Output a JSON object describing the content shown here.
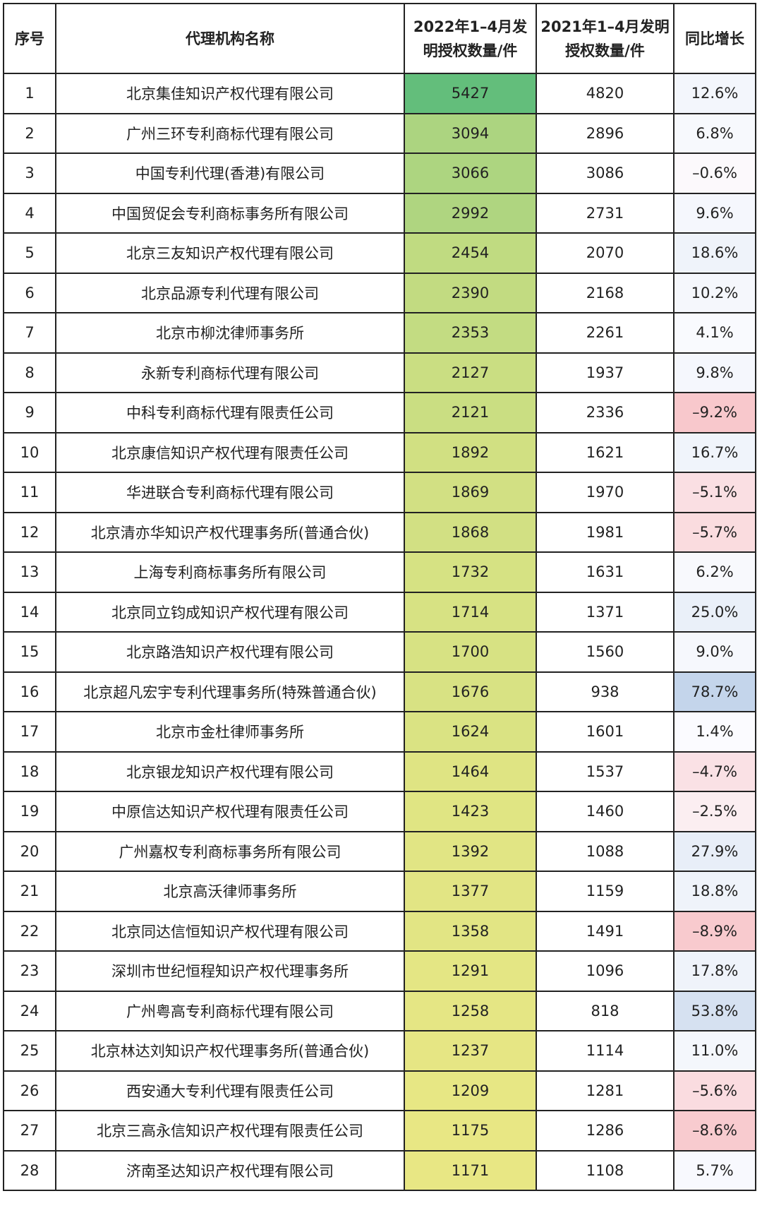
{
  "table": {
    "header": [
      "序号",
      "代理机构名称",
      "2022年1–4月发明授权数量/件",
      "2021年1–4月发明授权数量/件",
      "同比增长"
    ],
    "rows": [
      [
        "1",
        "北京集佳知识产权代理有限公司",
        "5427",
        "4820",
        "12.6%"
      ],
      [
        "2",
        "广州三环专利商标代理有限公司",
        "3094",
        "2896",
        "6.8%"
      ],
      [
        "3",
        "中国专利代理(香港)有限公司",
        "3066",
        "3086",
        "–0.6%"
      ],
      [
        "4",
        "中国贸促会专利商标事务所有限公司",
        "2992",
        "2731",
        "9.6%"
      ],
      [
        "5",
        "北京三友知识产权代理有限公司",
        "2454",
        "2070",
        "18.6%"
      ],
      [
        "6",
        "北京品源专利代理有限公司",
        "2390",
        "2168",
        "10.2%"
      ],
      [
        "7",
        "北京市柳沈律师事务所",
        "2353",
        "2261",
        "4.1%"
      ],
      [
        "8",
        "永新专利商标代理有限公司",
        "2127",
        "1937",
        "9.8%"
      ],
      [
        "9",
        "中科专利商标代理有限责任公司",
        "2121",
        "2336",
        "–9.2%"
      ],
      [
        "10",
        "北京康信知识产权代理有限责任公司",
        "1892",
        "1621",
        "16.7%"
      ],
      [
        "11",
        "华进联合专利商标代理有限公司",
        "1869",
        "1970",
        "–5.1%"
      ],
      [
        "12",
        "北京清亦华知识产权代理事务所(普通合伙)",
        "1868",
        "1981",
        "–5.7%"
      ],
      [
        "13",
        "上海专利商标事务所有限公司",
        "1732",
        "1631",
        "6.2%"
      ],
      [
        "14",
        "北京同立钧成知识产权代理有限公司",
        "1714",
        "1371",
        "25.0%"
      ],
      [
        "15",
        "北京路浩知识产权代理有限公司",
        "1700",
        "1560",
        "9.0%"
      ],
      [
        "16",
        "北京超凡宏宇专利代理事务所(特殊普通合伙)",
        "1676",
        "938",
        "78.7%"
      ],
      [
        "17",
        "北京市金杜律师事务所",
        "1624",
        "1601",
        "1.4%"
      ],
      [
        "18",
        "北京银龙知识产权代理有限公司",
        "1464",
        "1537",
        "–4.7%"
      ],
      [
        "19",
        "中原信达知识产权代理有限责任公司",
        "1423",
        "1460",
        "–2.5%"
      ],
      [
        "20",
        "广州嘉权专利商标事务所有限公司",
        "1392",
        "1088",
        "27.9%"
      ],
      [
        "21",
        "北京高沃律师事务所",
        "1377",
        "1159",
        "18.8%"
      ],
      [
        "22",
        "北京同达信恒知识产权代理有限公司",
        "1358",
        "1491",
        "–8.9%"
      ],
      [
        "23",
        "深圳市世纪恒程知识产权代理事务所",
        "1291",
        "1096",
        "17.8%"
      ],
      [
        "24",
        "广州粤高专利商标代理有限公司",
        "1258",
        "818",
        "53.8%"
      ],
      [
        "25",
        "北京林达刘知识产权代理事务所(普通合伙)",
        "1237",
        "1114",
        "11.0%"
      ],
      [
        "26",
        "西安通大专利代理有限责任公司",
        "1209",
        "1281",
        "–5.6%"
      ],
      [
        "27",
        "北京三高永信知识产权代理有限责任公司",
        "1175",
        "1286",
        "–8.6%"
      ],
      [
        "28",
        "济南圣达知识产权代理有限公司",
        "1171",
        "1108",
        "5.7%"
      ]
    ]
  }
}
